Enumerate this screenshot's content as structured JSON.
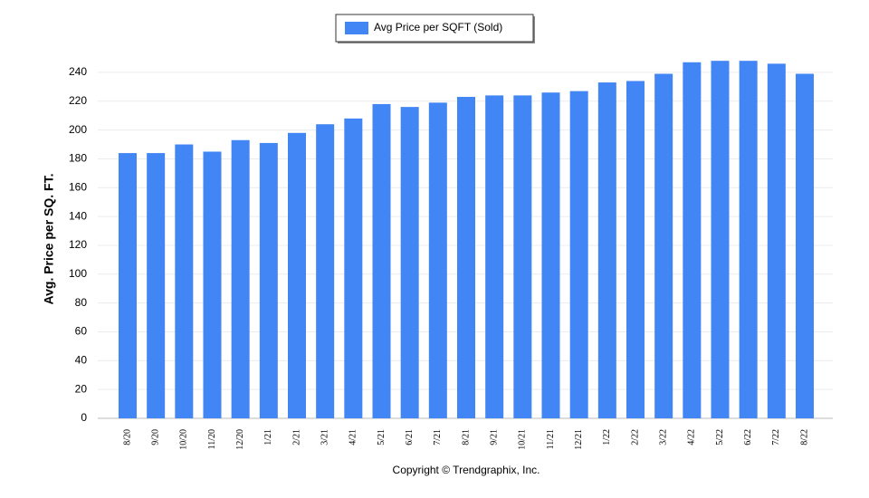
{
  "chart_data": {
    "type": "bar",
    "legend_label": "Avg Price per SQFT (Sold)",
    "y_label": "Avg. Price per SQ. FT.",
    "footer": "Copyright © Trendgraphix, Inc.",
    "categories": [
      "8/20",
      "9/20",
      "10/20",
      "11/20",
      "12/20",
      "1/21",
      "2/21",
      "3/21",
      "4/21",
      "5/21",
      "6/21",
      "7/21",
      "8/21",
      "9/21",
      "10/21",
      "11/21",
      "12/21",
      "1/22",
      "2/22",
      "3/22",
      "4/22",
      "5/22",
      "6/22",
      "7/22",
      "8/22"
    ],
    "values": [
      184,
      184,
      190,
      185,
      193,
      191,
      198,
      204,
      208,
      218,
      216,
      219,
      223,
      224,
      224,
      226,
      227,
      233,
      234,
      239,
      247,
      248,
      248,
      246,
      239
    ],
    "color": "#4285f4",
    "ylim": [
      0,
      250
    ],
    "yticks": [
      0,
      20,
      40,
      60,
      80,
      100,
      120,
      140,
      160,
      180,
      200,
      220,
      240
    ],
    "grid": true
  }
}
